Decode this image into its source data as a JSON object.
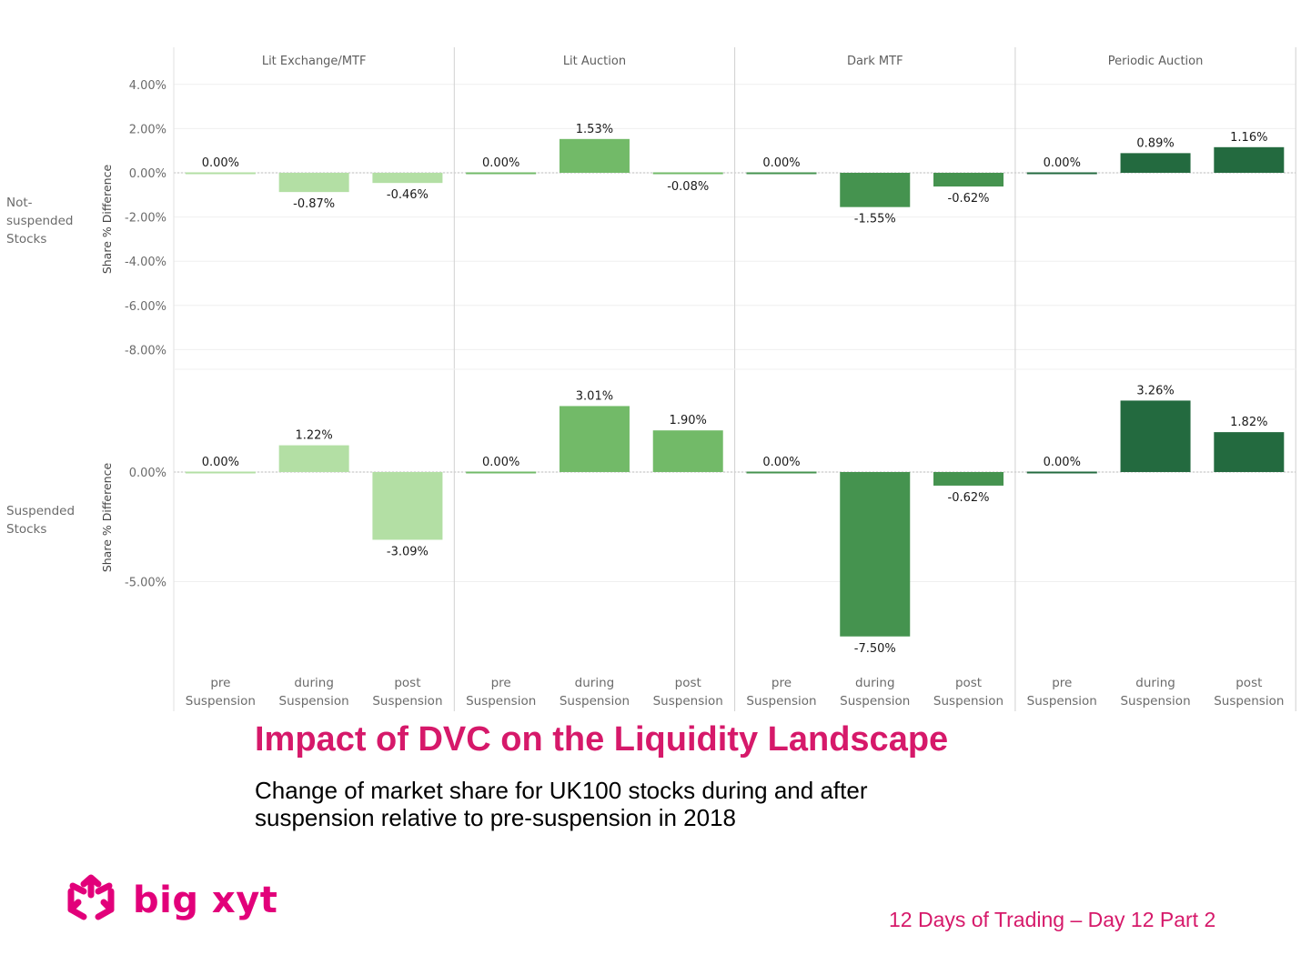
{
  "chart_data": {
    "type": "bar",
    "title": "Impact of DVC on the Liquidity Landscape",
    "subtitle": "Change of market share for UK100 stocks during and after suspension relative to pre-suspension in 2018",
    "ylabel": "Share % Difference",
    "columns": [
      "Lit Exchange/MTF",
      "Lit Auction",
      "Dark MTF",
      "Periodic Auction"
    ],
    "categories": [
      [
        "pre",
        "Suspension"
      ],
      [
        "during",
        "Suspension"
      ],
      [
        "post",
        "Suspension"
      ]
    ],
    "column_colors": [
      "#b3dfa4",
      "#72ba68",
      "#45934f",
      "#236a3f"
    ],
    "rows": [
      {
        "label": [
          "Not-",
          "suspended",
          "Stocks"
        ],
        "ylim": [
          -9,
          4.5
        ],
        "yticks": [
          4,
          2,
          0,
          -2,
          -4,
          -6,
          -8
        ],
        "ytick_labels": [
          "4.00%",
          "2.00%",
          "0.00%",
          "-2.00%",
          "-4.00%",
          "-6.00%",
          "-8.00%"
        ],
        "series": [
          {
            "name": "Lit Exchange/MTF",
            "values": [
              0.0,
              -0.87,
              -0.46
            ],
            "labels": [
              "0.00%",
              "-0.87%",
              "-0.46%"
            ]
          },
          {
            "name": "Lit Auction",
            "values": [
              0.0,
              1.53,
              -0.08
            ],
            "labels": [
              "0.00%",
              "1.53%",
              "-0.08%"
            ]
          },
          {
            "name": "Dark MTF",
            "values": [
              0.0,
              -1.55,
              -0.62
            ],
            "labels": [
              "0.00%",
              "-1.55%",
              "-0.62%"
            ]
          },
          {
            "name": "Periodic Auction",
            "values": [
              0.0,
              0.89,
              1.16
            ],
            "labels": [
              "0.00%",
              "0.89%",
              "1.16%"
            ]
          }
        ]
      },
      {
        "label": [
          "Suspended",
          "Stocks"
        ],
        "ylim": [
          -8.8,
          4.6
        ],
        "yticks": [
          0,
          -5
        ],
        "ytick_labels": [
          "0.00%",
          "-5.00%"
        ],
        "series": [
          {
            "name": "Lit Exchange/MTF",
            "values": [
              0.0,
              1.22,
              -3.09
            ],
            "labels": [
              "0.00%",
              "1.22%",
              "-3.09%"
            ]
          },
          {
            "name": "Lit Auction",
            "values": [
              0.0,
              3.01,
              1.9
            ],
            "labels": [
              "0.00%",
              "3.01%",
              "1.90%"
            ]
          },
          {
            "name": "Dark MTF",
            "values": [
              0.0,
              -7.5,
              -0.62
            ],
            "labels": [
              "0.00%",
              "-7.50%",
              "-0.62%"
            ]
          },
          {
            "name": "Periodic Auction",
            "values": [
              0.0,
              3.26,
              1.82
            ],
            "labels": [
              "0.00%",
              "3.26%",
              "1.82%"
            ]
          }
        ]
      }
    ],
    "grid": true,
    "legend": "none"
  },
  "slide": {
    "title": "Impact of DVC on the Liquidity Landscape",
    "subtitle": "Change of market share for UK100 stocks during and after suspension relative to pre-suspension in 2018",
    "footer": "12 Days of Trading – Day 12  Part 2",
    "logo_text": "big xyt",
    "brand_color": "#d6196a"
  }
}
